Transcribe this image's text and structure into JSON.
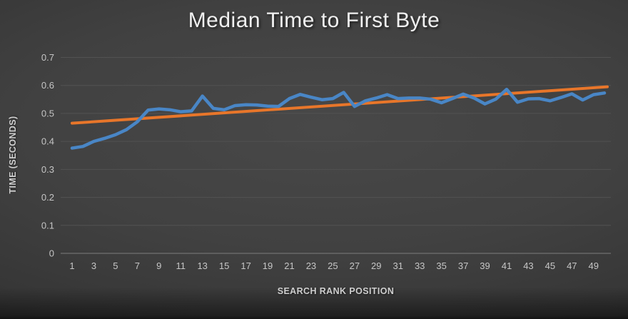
{
  "title": "Median Time to First Byte",
  "colors": {
    "background_center": "#484848",
    "background_edge": "#232323",
    "series_blue": "#4986c6",
    "trend_orange": "#e8762a",
    "gridline": "#525252",
    "baseline": "#7d7d7d",
    "tick_text": "#c6c6c6",
    "title_text": "#f0f0f0"
  },
  "chart_data": {
    "type": "line",
    "title": "Median Time to First Byte",
    "xlabel": "SEARCH RANK POSITION",
    "ylabel": "TIME (SECONDS)",
    "x": [
      1,
      2,
      3,
      4,
      5,
      6,
      7,
      8,
      9,
      10,
      11,
      12,
      13,
      14,
      15,
      16,
      17,
      18,
      19,
      20,
      21,
      22,
      23,
      24,
      25,
      26,
      27,
      28,
      29,
      30,
      31,
      32,
      33,
      34,
      35,
      36,
      37,
      38,
      39,
      40,
      41,
      42,
      43,
      44,
      45,
      46,
      47,
      48,
      49,
      50
    ],
    "series": [
      {
        "name": "median-ttfb-seconds",
        "color": "#4986c6",
        "values": [
          0.376,
          0.382,
          0.4,
          0.411,
          0.424,
          0.442,
          0.47,
          0.512,
          0.516,
          0.513,
          0.506,
          0.509,
          0.562,
          0.518,
          0.513,
          0.528,
          0.531,
          0.53,
          0.526,
          0.525,
          0.553,
          0.568,
          0.558,
          0.549,
          0.553,
          0.575,
          0.525,
          0.545,
          0.555,
          0.567,
          0.553,
          0.555,
          0.555,
          0.551,
          0.538,
          0.553,
          0.569,
          0.555,
          0.534,
          0.551,
          0.586,
          0.54,
          0.552,
          0.553,
          0.545,
          0.557,
          0.57,
          0.548,
          0.567,
          0.573
        ]
      }
    ],
    "trendline": {
      "name": "linear-trend",
      "color": "#e8762a",
      "start_value": 0.465,
      "end_value": 0.595
    },
    "ylim": [
      0,
      0.7
    ],
    "y_ticks": [
      0,
      0.1,
      0.2,
      0.3,
      0.4,
      0.5,
      0.6,
      0.7
    ],
    "y_tick_labels": [
      "0",
      "0.1",
      "0.2",
      "0.3",
      "0.4",
      "0.5",
      "0.6",
      "0.7"
    ],
    "x_tick_labels": [
      1,
      3,
      5,
      7,
      9,
      11,
      13,
      15,
      17,
      19,
      21,
      23,
      25,
      27,
      29,
      31,
      33,
      35,
      37,
      39,
      41,
      43,
      45,
      47,
      49
    ],
    "grid": true,
    "legend": false
  }
}
